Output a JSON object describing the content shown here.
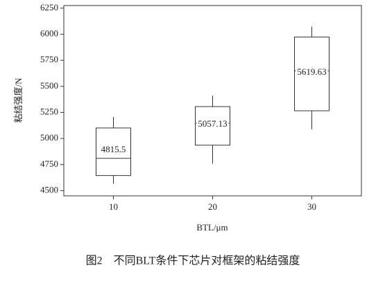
{
  "chart_data": {
    "type": "box",
    "y_label": "粘结强度/N",
    "x_label": "BTL/μm",
    "caption": "图2　不同BLT条件下芯片对框架的粘结强度",
    "categories": [
      "10",
      "20",
      "30"
    ],
    "whisker_low": [
      4566,
      4758,
      5088
    ],
    "q1": [
      4645,
      4936,
      5266
    ],
    "median": [
      4810,
      5147,
      5649
    ],
    "q3": [
      5101,
      5306,
      5973
    ],
    "whisker_high": [
      5207,
      5411,
      6072
    ],
    "means": [
      4815.5,
      5057.13,
      5619.63
    ],
    "ylim": [
      4450,
      6275
    ],
    "yticks": [
      4500,
      4750,
      5000,
      5250,
      5500,
      5750,
      6000,
      6250
    ],
    "color": "#333333"
  }
}
